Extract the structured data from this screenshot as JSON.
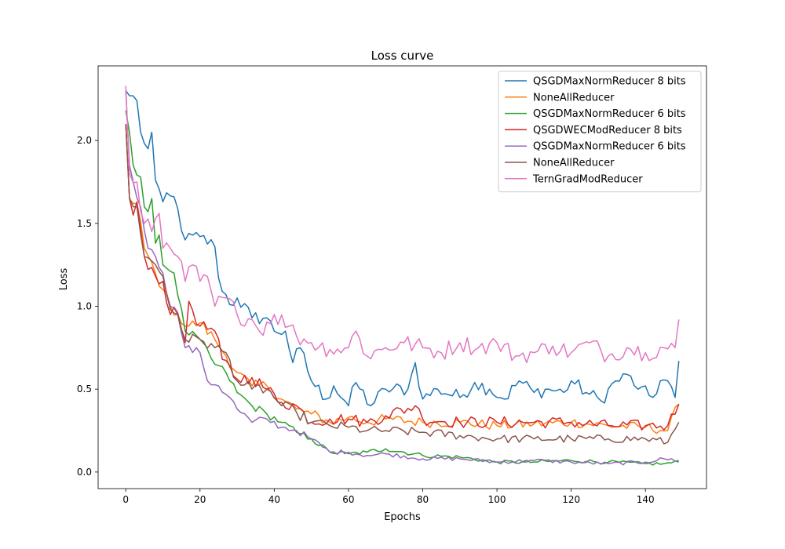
{
  "chart_data": {
    "type": "line",
    "title": "Loss curve",
    "xlabel": "Epochs",
    "ylabel": "Loss",
    "xlim": [
      -7.45,
      156.45
    ],
    "ylim": [
      -0.1,
      2.45
    ],
    "xticks": [
      0,
      20,
      40,
      60,
      80,
      100,
      120,
      140
    ],
    "xtick_labels": [
      "0",
      "20",
      "40",
      "60",
      "80",
      "100",
      "120",
      "140"
    ],
    "yticks": [
      0.0,
      0.5,
      1.0,
      1.5,
      2.0
    ],
    "ytick_labels": [
      "0.0",
      "0.5",
      "1.0",
      "1.5",
      "2.0"
    ],
    "grid": false,
    "legend_position": "top-right",
    "series": [
      {
        "name": "QSGDMaxNormReducer 8 bits",
        "color": "#1f77b4",
        "anchors": [
          [
            0,
            2.3
          ],
          [
            1,
            2.27
          ],
          [
            3,
            2.24
          ],
          [
            4,
            2.05
          ],
          [
            6,
            1.95
          ],
          [
            7,
            2.05
          ],
          [
            8,
            1.76
          ],
          [
            10,
            1.63
          ],
          [
            13,
            1.66
          ],
          [
            16,
            1.4
          ],
          [
            20,
            1.42
          ],
          [
            24,
            1.36
          ],
          [
            25,
            1.17
          ],
          [
            28,
            1.01
          ],
          [
            30,
            1.05
          ],
          [
            34,
            0.93
          ],
          [
            38,
            0.93
          ],
          [
            40,
            0.85
          ],
          [
            43,
            0.85
          ],
          [
            45,
            0.66
          ],
          [
            47,
            0.75
          ],
          [
            50,
            0.55
          ],
          [
            54,
            0.44
          ],
          [
            56,
            0.52
          ],
          [
            60,
            0.4
          ],
          [
            62,
            0.54
          ],
          [
            66,
            0.4
          ],
          [
            70,
            0.5
          ],
          [
            76,
            0.5
          ],
          [
            78,
            0.66
          ],
          [
            80,
            0.44
          ],
          [
            84,
            0.5
          ],
          [
            90,
            0.45
          ],
          [
            94,
            0.54
          ],
          [
            98,
            0.5
          ],
          [
            102,
            0.44
          ],
          [
            106,
            0.55
          ],
          [
            110,
            0.48
          ],
          [
            114,
            0.5
          ],
          [
            118,
            0.48
          ],
          [
            120,
            0.55
          ],
          [
            124,
            0.48
          ],
          [
            128,
            0.43
          ],
          [
            132,
            0.55
          ],
          [
            136,
            0.58
          ],
          [
            138,
            0.5
          ],
          [
            142,
            0.45
          ],
          [
            144,
            0.55
          ],
          [
            146,
            0.55
          ],
          [
            148,
            0.45
          ],
          [
            149,
            0.67
          ]
        ],
        "noise": 0.045
      },
      {
        "name": "NoneAllReducer",
        "color": "#ff7f0e",
        "anchors": [
          [
            0,
            2.1
          ],
          [
            1,
            1.65
          ],
          [
            2,
            1.62
          ],
          [
            3,
            1.62
          ],
          [
            5,
            1.35
          ],
          [
            8,
            1.2
          ],
          [
            10,
            1.1
          ],
          [
            12,
            1.0
          ],
          [
            14,
            0.95
          ],
          [
            16,
            0.88
          ],
          [
            20,
            0.9
          ],
          [
            24,
            0.8
          ],
          [
            27,
            0.7
          ],
          [
            30,
            0.6
          ],
          [
            34,
            0.52
          ],
          [
            38,
            0.52
          ],
          [
            42,
            0.44
          ],
          [
            46,
            0.38
          ],
          [
            50,
            0.35
          ],
          [
            55,
            0.3
          ],
          [
            60,
            0.33
          ],
          [
            65,
            0.3
          ],
          [
            70,
            0.32
          ],
          [
            80,
            0.3
          ],
          [
            90,
            0.3
          ],
          [
            100,
            0.28
          ],
          [
            110,
            0.29
          ],
          [
            120,
            0.3
          ],
          [
            130,
            0.28
          ],
          [
            140,
            0.27
          ],
          [
            146,
            0.25
          ],
          [
            149,
            0.41
          ]
        ],
        "noise": 0.035
      },
      {
        "name": "QSGDMaxNormReducer 6 bits",
        "color": "#2ca02c",
        "anchors": [
          [
            0,
            2.18
          ],
          [
            1,
            2.05
          ],
          [
            2,
            1.85
          ],
          [
            4,
            1.78
          ],
          [
            5,
            1.6
          ],
          [
            6,
            1.57
          ],
          [
            7,
            1.65
          ],
          [
            8,
            1.38
          ],
          [
            9,
            1.43
          ],
          [
            10,
            1.25
          ],
          [
            13,
            1.2
          ],
          [
            16,
            0.85
          ],
          [
            20,
            0.8
          ],
          [
            24,
            0.65
          ],
          [
            27,
            0.6
          ],
          [
            30,
            0.48
          ],
          [
            34,
            0.4
          ],
          [
            38,
            0.35
          ],
          [
            42,
            0.3
          ],
          [
            46,
            0.24
          ],
          [
            50,
            0.2
          ],
          [
            55,
            0.12
          ],
          [
            60,
            0.11
          ],
          [
            65,
            0.12
          ],
          [
            70,
            0.14
          ],
          [
            80,
            0.1
          ],
          [
            90,
            0.09
          ],
          [
            100,
            0.06
          ],
          [
            110,
            0.06
          ],
          [
            120,
            0.07
          ],
          [
            130,
            0.06
          ],
          [
            140,
            0.05
          ],
          [
            145,
            0.05
          ],
          [
            149,
            0.06
          ]
        ],
        "noise": 0.025
      },
      {
        "name": "QSGDWECModReducer 8 bits",
        "color": "#d62728",
        "anchors": [
          [
            0,
            2.1
          ],
          [
            1,
            1.65
          ],
          [
            2,
            1.55
          ],
          [
            3,
            1.63
          ],
          [
            5,
            1.3
          ],
          [
            8,
            1.18
          ],
          [
            10,
            1.15
          ],
          [
            12,
            0.95
          ],
          [
            14,
            0.96
          ],
          [
            16,
            0.78
          ],
          [
            17,
            1.03
          ],
          [
            20,
            0.88
          ],
          [
            24,
            0.85
          ],
          [
            26,
            0.68
          ],
          [
            30,
            0.56
          ],
          [
            34,
            0.57
          ],
          [
            38,
            0.5
          ],
          [
            42,
            0.42
          ],
          [
            46,
            0.4
          ],
          [
            50,
            0.3
          ],
          [
            55,
            0.32
          ],
          [
            60,
            0.32
          ],
          [
            65,
            0.3
          ],
          [
            70,
            0.34
          ],
          [
            78,
            0.4
          ],
          [
            80,
            0.32
          ],
          [
            90,
            0.3
          ],
          [
            100,
            0.3
          ],
          [
            110,
            0.3
          ],
          [
            120,
            0.3
          ],
          [
            130,
            0.28
          ],
          [
            140,
            0.28
          ],
          [
            146,
            0.28
          ],
          [
            149,
            0.41
          ]
        ],
        "noise": 0.04
      },
      {
        "name": "QSGDMaxNormReducer 6 bits",
        "color": "#9467bd",
        "anchors": [
          [
            0,
            2.3
          ],
          [
            1,
            1.85
          ],
          [
            2,
            1.75
          ],
          [
            4,
            1.6
          ],
          [
            6,
            1.35
          ],
          [
            8,
            1.3
          ],
          [
            10,
            1.2
          ],
          [
            12,
            1.0
          ],
          [
            14,
            0.95
          ],
          [
            16,
            0.75
          ],
          [
            20,
            0.72
          ],
          [
            22,
            0.55
          ],
          [
            25,
            0.52
          ],
          [
            28,
            0.45
          ],
          [
            30,
            0.38
          ],
          [
            34,
            0.3
          ],
          [
            38,
            0.32
          ],
          [
            42,
            0.27
          ],
          [
            46,
            0.25
          ],
          [
            50,
            0.2
          ],
          [
            55,
            0.12
          ],
          [
            60,
            0.12
          ],
          [
            65,
            0.1
          ],
          [
            70,
            0.11
          ],
          [
            80,
            0.08
          ],
          [
            90,
            0.08
          ],
          [
            100,
            0.06
          ],
          [
            110,
            0.07
          ],
          [
            120,
            0.06
          ],
          [
            130,
            0.05
          ],
          [
            140,
            0.06
          ],
          [
            145,
            0.08
          ],
          [
            149,
            0.07
          ]
        ],
        "noise": 0.025
      },
      {
        "name": "NoneAllReducer",
        "color": "#8c564b",
        "anchors": [
          [
            0,
            2.1
          ],
          [
            1,
            1.65
          ],
          [
            2,
            1.6
          ],
          [
            3,
            1.6
          ],
          [
            5,
            1.3
          ],
          [
            8,
            1.25
          ],
          [
            10,
            1.18
          ],
          [
            12,
            0.98
          ],
          [
            14,
            0.95
          ],
          [
            16,
            0.8
          ],
          [
            20,
            0.8
          ],
          [
            24,
            0.75
          ],
          [
            27,
            0.72
          ],
          [
            30,
            0.55
          ],
          [
            34,
            0.5
          ],
          [
            38,
            0.5
          ],
          [
            42,
            0.4
          ],
          [
            46,
            0.36
          ],
          [
            50,
            0.3
          ],
          [
            55,
            0.28
          ],
          [
            60,
            0.27
          ],
          [
            65,
            0.25
          ],
          [
            70,
            0.25
          ],
          [
            80,
            0.24
          ],
          [
            90,
            0.22
          ],
          [
            100,
            0.2
          ],
          [
            110,
            0.2
          ],
          [
            120,
            0.2
          ],
          [
            130,
            0.2
          ],
          [
            140,
            0.2
          ],
          [
            146,
            0.18
          ],
          [
            149,
            0.3
          ]
        ],
        "noise": 0.035
      },
      {
        "name": "TernGradModReducer",
        "color": "#e377c2",
        "anchors": [
          [
            0,
            2.33
          ],
          [
            1,
            1.8
          ],
          [
            3,
            1.75
          ],
          [
            5,
            1.5
          ],
          [
            7,
            1.45
          ],
          [
            9,
            1.56
          ],
          [
            10,
            1.35
          ],
          [
            12,
            1.35
          ],
          [
            14,
            1.3
          ],
          [
            16,
            1.15
          ],
          [
            18,
            1.25
          ],
          [
            20,
            1.15
          ],
          [
            22,
            1.18
          ],
          [
            24,
            1.0
          ],
          [
            27,
            1.05
          ],
          [
            30,
            0.95
          ],
          [
            34,
            0.92
          ],
          [
            36,
            0.85
          ],
          [
            40,
            0.95
          ],
          [
            44,
            0.88
          ],
          [
            46,
            0.82
          ],
          [
            50,
            0.78
          ],
          [
            55,
            0.74
          ],
          [
            60,
            0.75
          ],
          [
            62,
            0.85
          ],
          [
            65,
            0.7
          ],
          [
            70,
            0.75
          ],
          [
            75,
            0.78
          ],
          [
            80,
            0.75
          ],
          [
            85,
            0.72
          ],
          [
            90,
            0.78
          ],
          [
            95,
            0.75
          ],
          [
            100,
            0.78
          ],
          [
            105,
            0.7
          ],
          [
            110,
            0.72
          ],
          [
            115,
            0.76
          ],
          [
            120,
            0.72
          ],
          [
            125,
            0.78
          ],
          [
            130,
            0.7
          ],
          [
            135,
            0.75
          ],
          [
            140,
            0.72
          ],
          [
            145,
            0.75
          ],
          [
            148,
            0.75
          ],
          [
            149,
            0.92
          ]
        ],
        "noise": 0.055
      }
    ]
  }
}
